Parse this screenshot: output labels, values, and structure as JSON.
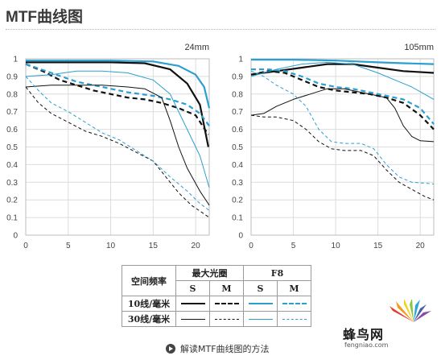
{
  "page": {
    "title": "MTF曲线图"
  },
  "colors": {
    "black": "#111111",
    "blue": "#2a9fd0",
    "grid": "#dcdcdc"
  },
  "chart_data": [
    {
      "type": "line",
      "title": "24mm",
      "xlim": [
        0,
        21.6
      ],
      "ylim": [
        0,
        1
      ],
      "x_ticks": [
        "0",
        "5",
        "10",
        "15",
        "20"
      ],
      "y_ticks": [
        "0",
        "0.1",
        "0.2",
        "0.3",
        "0.4",
        "0.5",
        "0.6",
        "0.7",
        "0.8",
        "0.9",
        "1"
      ],
      "grid": true,
      "series": [
        {
          "group": "10线/毫米",
          "aperture": "最大光圈",
          "plane": "S",
          "color": "black",
          "width": 2.2,
          "dashed": false,
          "points": [
            [
              0,
              0.98
            ],
            [
              5,
              0.98
            ],
            [
              10,
              0.98
            ],
            [
              14,
              0.975
            ],
            [
              17,
              0.94
            ],
            [
              19,
              0.86
            ],
            [
              20.5,
              0.74
            ],
            [
              21.5,
              0.5
            ]
          ]
        },
        {
          "group": "10线/毫米",
          "aperture": "最大光圈",
          "plane": "M",
          "color": "black",
          "width": 2.2,
          "dashed": true,
          "points": [
            [
              0,
              0.97
            ],
            [
              2,
              0.93
            ],
            [
              4,
              0.88
            ],
            [
              6,
              0.85
            ],
            [
              8,
              0.82
            ],
            [
              10,
              0.8
            ],
            [
              12,
              0.78
            ],
            [
              14,
              0.77
            ],
            [
              16,
              0.75
            ],
            [
              18,
              0.72
            ],
            [
              20,
              0.68
            ],
            [
              21.5,
              0.57
            ]
          ]
        },
        {
          "group": "10线/毫米",
          "aperture": "F8",
          "plane": "S",
          "color": "blue",
          "width": 2.2,
          "dashed": false,
          "points": [
            [
              0,
              0.99
            ],
            [
              5,
              0.99
            ],
            [
              10,
              0.99
            ],
            [
              15,
              0.985
            ],
            [
              18,
              0.96
            ],
            [
              20,
              0.91
            ],
            [
              21,
              0.84
            ],
            [
              21.6,
              0.72
            ]
          ]
        },
        {
          "group": "10线/毫米",
          "aperture": "F8",
          "plane": "M",
          "color": "blue",
          "width": 2.2,
          "dashed": true,
          "points": [
            [
              0,
              0.97
            ],
            [
              3,
              0.92
            ],
            [
              6,
              0.87
            ],
            [
              9,
              0.84
            ],
            [
              12,
              0.81
            ],
            [
              15,
              0.79
            ],
            [
              17,
              0.77
            ],
            [
              19,
              0.74
            ],
            [
              20.5,
              0.69
            ],
            [
              21.6,
              0.62
            ]
          ]
        },
        {
          "group": "30线/毫米",
          "aperture": "最大光圈",
          "plane": "S",
          "color": "black",
          "width": 1.0,
          "dashed": false,
          "points": [
            [
              0,
              0.84
            ],
            [
              3,
              0.85
            ],
            [
              6,
              0.85
            ],
            [
              9,
              0.85
            ],
            [
              12,
              0.84
            ],
            [
              14,
              0.83
            ],
            [
              16,
              0.78
            ],
            [
              17,
              0.65
            ],
            [
              18,
              0.5
            ],
            [
              19,
              0.38
            ],
            [
              20.5,
              0.25
            ],
            [
              21.6,
              0.17
            ]
          ]
        },
        {
          "group": "30线/毫米",
          "aperture": "最大光圈",
          "plane": "M",
          "color": "black",
          "width": 1.0,
          "dashed": true,
          "points": [
            [
              0,
              0.84
            ],
            [
              1.5,
              0.75
            ],
            [
              3,
              0.69
            ],
            [
              5,
              0.64
            ],
            [
              7,
              0.59
            ],
            [
              9,
              0.56
            ],
            [
              11,
              0.52
            ],
            [
              13,
              0.47
            ],
            [
              15,
              0.42
            ],
            [
              17,
              0.3
            ],
            [
              18,
              0.24
            ],
            [
              19.5,
              0.17
            ],
            [
              21,
              0.12
            ],
            [
              21.6,
              0.1
            ]
          ]
        },
        {
          "group": "30线/毫米",
          "aperture": "F8",
          "plane": "S",
          "color": "blue",
          "width": 1.0,
          "dashed": false,
          "points": [
            [
              0,
              0.9
            ],
            [
              3,
              0.91
            ],
            [
              6,
              0.93
            ],
            [
              9,
              0.93
            ],
            [
              12,
              0.92
            ],
            [
              15,
              0.88
            ],
            [
              17,
              0.8
            ],
            [
              19,
              0.6
            ],
            [
              20.5,
              0.45
            ],
            [
              21.6,
              0.27
            ]
          ]
        },
        {
          "group": "30线/毫米",
          "aperture": "F8",
          "plane": "M",
          "color": "blue",
          "width": 1.0,
          "dashed": true,
          "points": [
            [
              0,
              0.9
            ],
            [
              1.5,
              0.82
            ],
            [
              3,
              0.75
            ],
            [
              5,
              0.7
            ],
            [
              7,
              0.64
            ],
            [
              9,
              0.58
            ],
            [
              11,
              0.54
            ],
            [
              13,
              0.48
            ],
            [
              15,
              0.42
            ],
            [
              17,
              0.33
            ],
            [
              19,
              0.25
            ],
            [
              20.5,
              0.18
            ],
            [
              21.6,
              0.14
            ]
          ]
        }
      ]
    },
    {
      "type": "line",
      "title": "105mm",
      "xlim": [
        0,
        21.6
      ],
      "ylim": [
        0,
        1
      ],
      "x_ticks": [
        "0",
        "5",
        "10",
        "15",
        "20"
      ],
      "y_ticks": [
        "0",
        "0.1",
        "0.2",
        "0.3",
        "0.4",
        "0.5",
        "0.6",
        "0.7",
        "0.8",
        "0.9",
        "1"
      ],
      "grid": true,
      "series": [
        {
          "group": "10线/毫米",
          "aperture": "最大光圈",
          "plane": "S",
          "color": "black",
          "width": 2.2,
          "dashed": false,
          "points": [
            [
              0,
              0.91
            ],
            [
              3,
              0.93
            ],
            [
              6,
              0.95
            ],
            [
              9,
              0.97
            ],
            [
              12,
              0.97
            ],
            [
              15,
              0.95
            ],
            [
              18,
              0.93
            ],
            [
              21.6,
              0.92
            ]
          ]
        },
        {
          "group": "10线/毫米",
          "aperture": "最大光圈",
          "plane": "M",
          "color": "black",
          "width": 2.2,
          "dashed": true,
          "points": [
            [
              0,
              0.91
            ],
            [
              2,
              0.93
            ],
            [
              4,
              0.92
            ],
            [
              6,
              0.88
            ],
            [
              8,
              0.84
            ],
            [
              10,
              0.82
            ],
            [
              12,
              0.81
            ],
            [
              14,
              0.8
            ],
            [
              16,
              0.78
            ],
            [
              18,
              0.75
            ],
            [
              20,
              0.68
            ],
            [
              21.6,
              0.6
            ]
          ]
        },
        {
          "group": "10线/毫米",
          "aperture": "F8",
          "plane": "S",
          "color": "blue",
          "width": 2.2,
          "dashed": false,
          "points": [
            [
              0,
              0.995
            ],
            [
              5,
              0.995
            ],
            [
              10,
              0.99
            ],
            [
              15,
              0.98
            ],
            [
              18,
              0.975
            ],
            [
              21.6,
              0.97
            ]
          ]
        },
        {
          "group": "10线/毫米",
          "aperture": "F8",
          "plane": "M",
          "color": "blue",
          "width": 2.2,
          "dashed": true,
          "points": [
            [
              0,
              0.94
            ],
            [
              2,
              0.94
            ],
            [
              4,
              0.93
            ],
            [
              6,
              0.9
            ],
            [
              8,
              0.86
            ],
            [
              10,
              0.84
            ],
            [
              12,
              0.83
            ],
            [
              14,
              0.81
            ],
            [
              16,
              0.79
            ],
            [
              18,
              0.77
            ],
            [
              20,
              0.72
            ],
            [
              21.6,
              0.63
            ]
          ]
        },
        {
          "group": "30线/毫米",
          "aperture": "最大光圈",
          "plane": "S",
          "color": "black",
          "width": 1.0,
          "dashed": false,
          "points": [
            [
              0,
              0.68
            ],
            [
              1.5,
              0.69
            ],
            [
              3,
              0.73
            ],
            [
              5,
              0.77
            ],
            [
              7,
              0.8
            ],
            [
              9,
              0.83
            ],
            [
              11,
              0.83
            ],
            [
              13,
              0.81
            ],
            [
              16,
              0.78
            ],
            [
              17,
              0.72
            ],
            [
              18,
              0.62
            ],
            [
              19,
              0.56
            ],
            [
              20,
              0.535
            ],
            [
              21.6,
              0.53
            ]
          ]
        },
        {
          "group": "30线/毫米",
          "aperture": "最大光圈",
          "plane": "M",
          "color": "black",
          "width": 1.0,
          "dashed": true,
          "points": [
            [
              0,
              0.68
            ],
            [
              1.5,
              0.67
            ],
            [
              3,
              0.67
            ],
            [
              5,
              0.65
            ],
            [
              6.5,
              0.6
            ],
            [
              8,
              0.53
            ],
            [
              9.5,
              0.49
            ],
            [
              11,
              0.48
            ],
            [
              13,
              0.48
            ],
            [
              14.5,
              0.45
            ],
            [
              16,
              0.37
            ],
            [
              17.5,
              0.3
            ],
            [
              19,
              0.26
            ],
            [
              20.5,
              0.22
            ],
            [
              21.6,
              0.2
            ]
          ]
        },
        {
          "group": "30线/毫米",
          "aperture": "F8",
          "plane": "S",
          "color": "blue",
          "width": 1.0,
          "dashed": false,
          "points": [
            [
              0,
              0.9
            ],
            [
              3,
              0.94
            ],
            [
              6,
              0.97
            ],
            [
              9,
              0.98
            ],
            [
              12,
              0.97
            ],
            [
              15,
              0.92
            ],
            [
              17,
              0.88
            ],
            [
              19,
              0.84
            ],
            [
              20.5,
              0.8
            ],
            [
              21.6,
              0.77
            ]
          ]
        },
        {
          "group": "30线/毫米",
          "aperture": "F8",
          "plane": "M",
          "color": "blue",
          "width": 1.0,
          "dashed": true,
          "points": [
            [
              0,
              0.93
            ],
            [
              1.5,
              0.9
            ],
            [
              3,
              0.85
            ],
            [
              5,
              0.8
            ],
            [
              6.5,
              0.73
            ],
            [
              8,
              0.6
            ],
            [
              9.5,
              0.53
            ],
            [
              11,
              0.52
            ],
            [
              13,
              0.52
            ],
            [
              14.5,
              0.49
            ],
            [
              16,
              0.4
            ],
            [
              17.5,
              0.33
            ],
            [
              19,
              0.3
            ],
            [
              20.5,
              0.295
            ],
            [
              21.6,
              0.29
            ]
          ]
        }
      ]
    }
  ],
  "legend": {
    "header_rowlabel": "空间频率",
    "header_groups": [
      "最大光圈",
      "F8"
    ],
    "header_cols": [
      "S",
      "M",
      "S",
      "M"
    ],
    "rows": [
      {
        "label": "10线/毫米",
        "width": 2.2
      },
      {
        "label": "30线/毫米",
        "width": 1.0
      }
    ]
  },
  "footer": {
    "link_text": "解读MTF曲线图的方法"
  },
  "watermark": {
    "brand": "蜂鸟网",
    "url": "fengniao.com"
  }
}
